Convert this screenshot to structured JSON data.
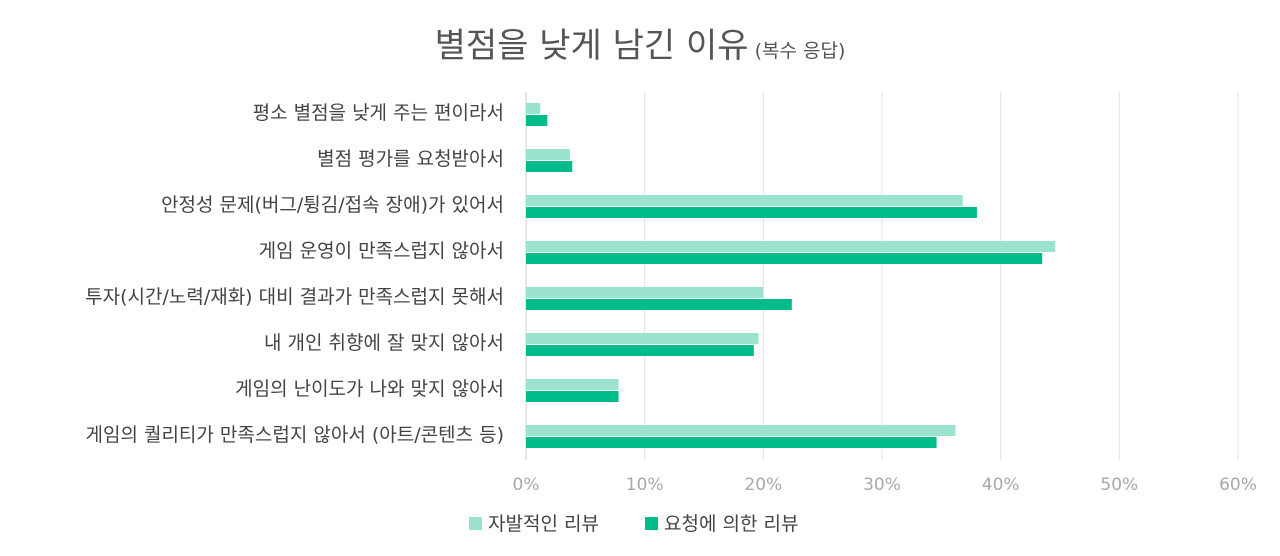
{
  "chart_data": {
    "type": "bar",
    "orientation": "horizontal",
    "title": "별점을 낮게 남긴 이유",
    "subtitle": "(복수 응답)",
    "categories": [
      "평소 별점을 낮게 주는 편이라서",
      "별점 평가를 요청받아서",
      "안정성 문제(버그/튕김/접속 장애)가 있어서",
      "게임 운영이 만족스럽지 않아서",
      "투자(시간/노력/재화) 대비 결과가 만족스럽지 못해서",
      "내 개인 취향에 잘 맞지 않아서",
      "게임의 난이도가 나와 맞지 않아서",
      "게임의 퀄리티가 만족스럽지 않아서 (아트/콘텐츠 등)"
    ],
    "series": [
      {
        "name": "자발적인 리뷰",
        "color": "#9ce3cf",
        "values": [
          1.2,
          3.7,
          36.8,
          44.6,
          20.0,
          19.6,
          7.8,
          36.2
        ]
      },
      {
        "name": "요청에 의한 리뷰",
        "color": "#00bc8a",
        "values": [
          1.8,
          3.9,
          38.0,
          43.5,
          22.4,
          19.2,
          7.8,
          34.6
        ]
      }
    ],
    "xlim": [
      0,
      60
    ],
    "xticks": [
      "0%",
      "10%",
      "20%",
      "30%",
      "40%",
      "50%",
      "60%"
    ],
    "grid": true,
    "legend": "bottom-center"
  }
}
